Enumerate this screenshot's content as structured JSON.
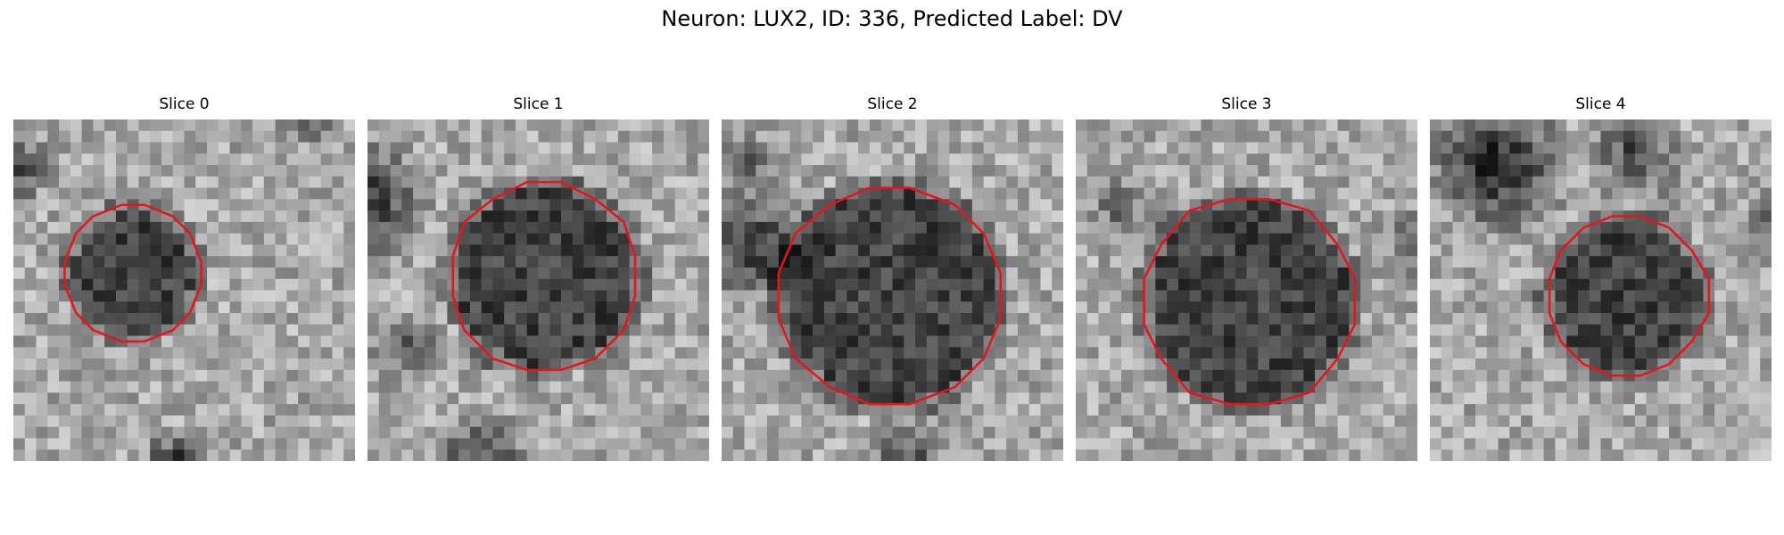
{
  "figure": {
    "title": "Neuron: LUX2, ID: 336, Predicted Label: DV"
  },
  "panels": [
    {
      "title": "Slice 0"
    },
    {
      "title": "Slice 1"
    },
    {
      "title": "Slice 2"
    },
    {
      "title": "Slice 3"
    },
    {
      "title": "Slice 4"
    }
  ],
  "colors": {
    "contour": "#e8141c",
    "background": "#ffffff"
  }
}
